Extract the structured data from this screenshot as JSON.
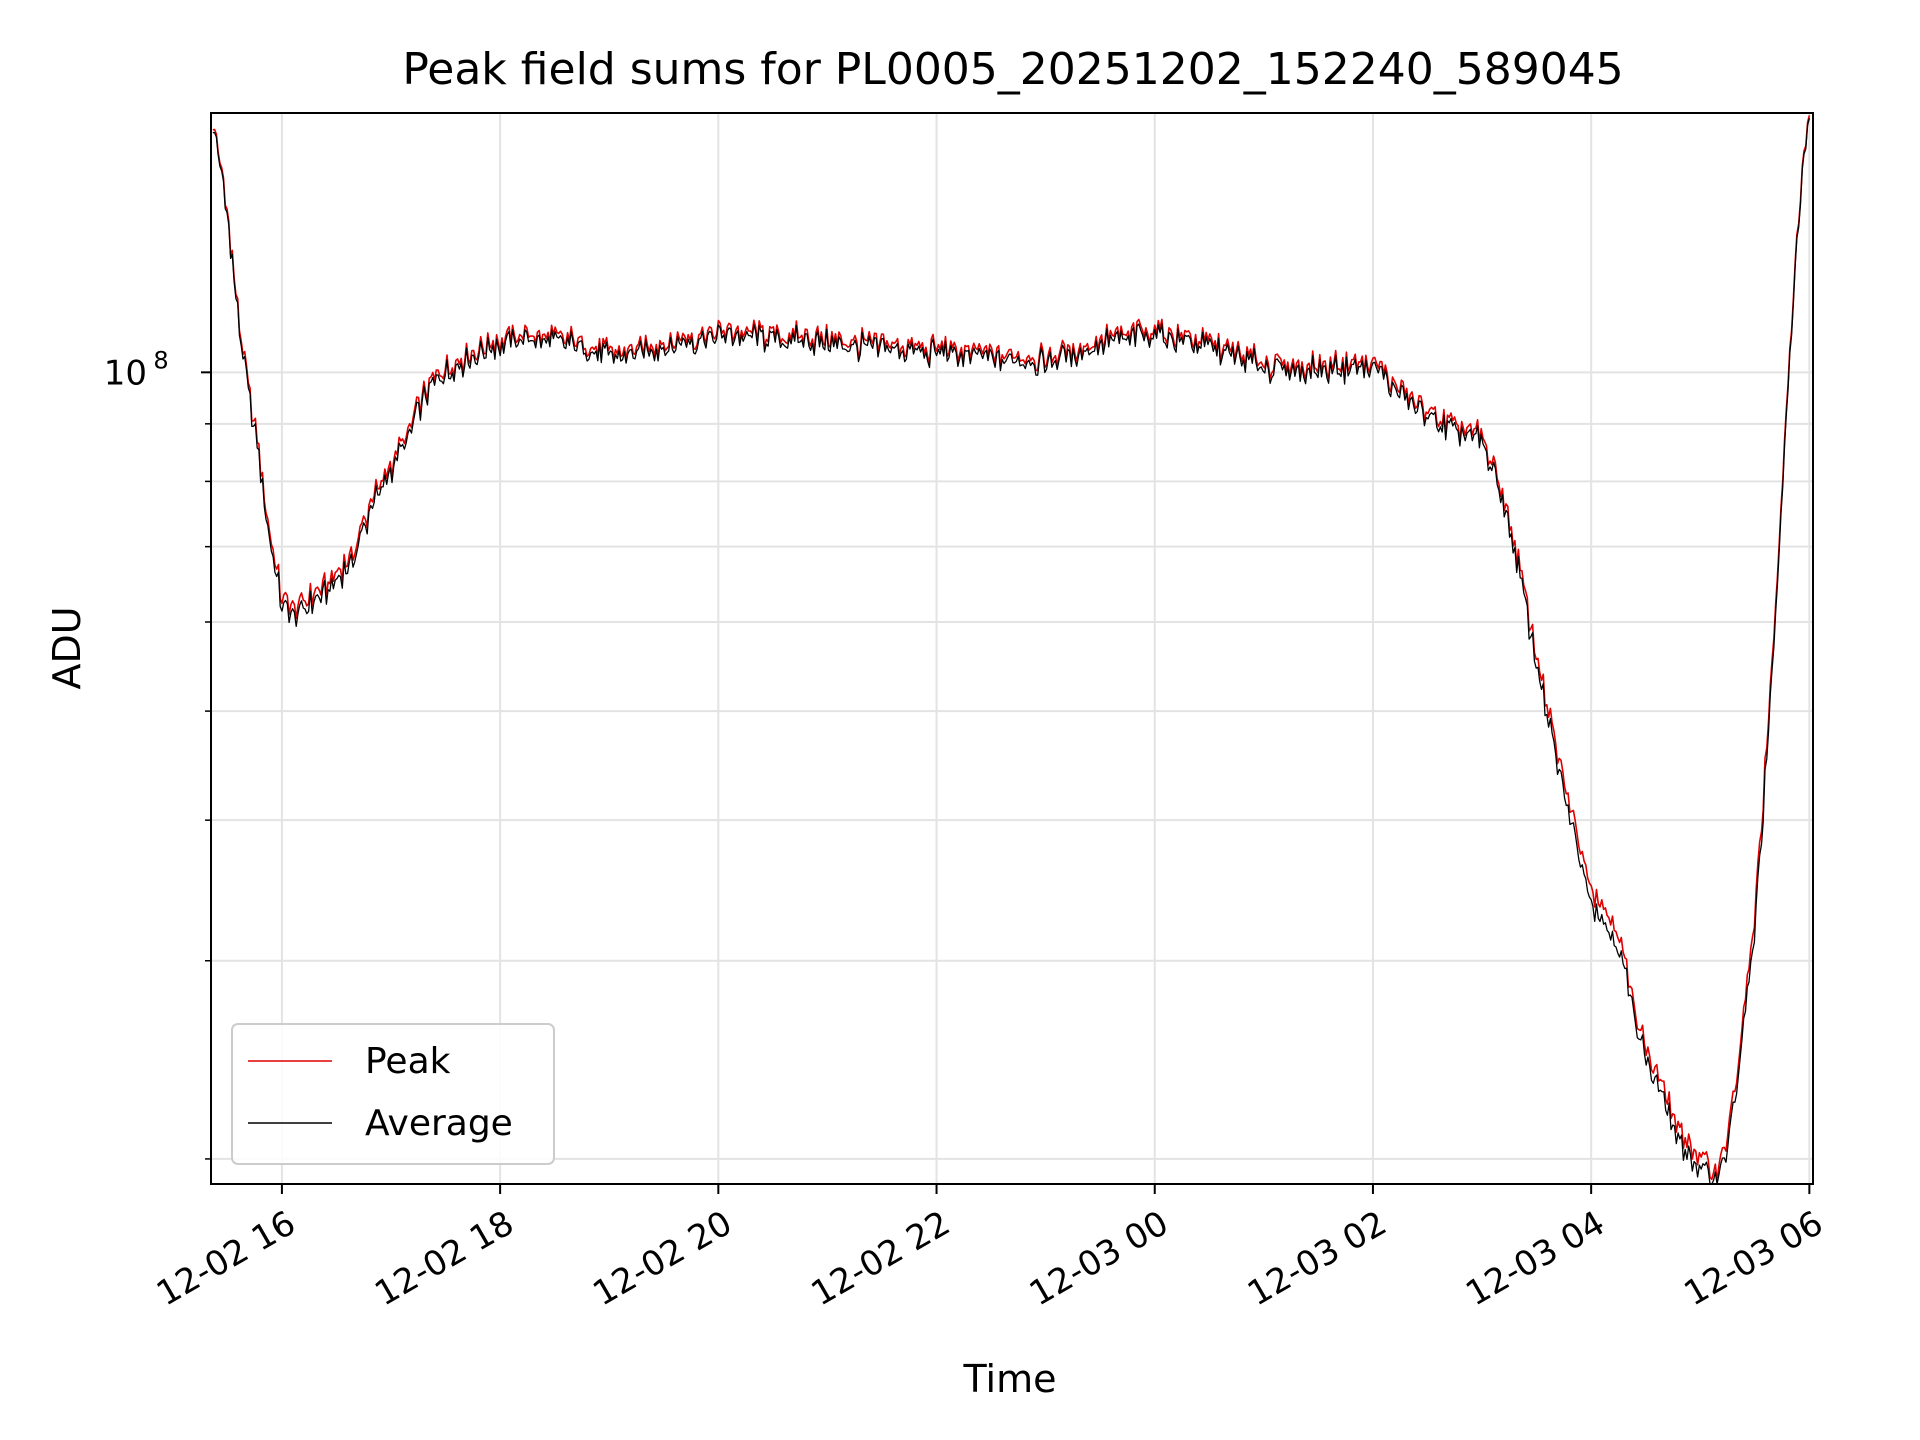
{
  "chart_data": {
    "type": "line",
    "title": "Peak field sums for PL0005_20251202_152240_589045",
    "xlabel": "Time",
    "ylabel": "ADU",
    "y_scale": "log",
    "grid": true,
    "legend_position": "lower-left",
    "xlim": [
      "2025-12-02 15:21",
      "2025-12-03 06:02"
    ],
    "ylim": [
      19000000,
      170000000
    ],
    "x_ticks": [
      "12-02 16",
      "12-02 18",
      "12-02 20",
      "12-02 22",
      "12-03 00",
      "12-03 02",
      "12-03 04",
      "12-03 06"
    ],
    "y_tick_labels": [
      {
        "base": "10",
        "exponent": "8"
      }
    ],
    "series": [
      {
        "name": "Peak",
        "color": "#e00000",
        "x": [
          "2025-12-02 15:22",
          "2025-12-02 15:27",
          "2025-12-02 15:32",
          "2025-12-02 15:37",
          "2025-12-02 15:42",
          "2025-12-02 15:46",
          "2025-12-02 15:50",
          "2025-12-02 15:54",
          "2025-12-02 15:57",
          "2025-12-02 16:00",
          "2025-12-02 16:10",
          "2025-12-02 16:20",
          "2025-12-02 16:30",
          "2025-12-02 16:40",
          "2025-12-02 16:50",
          "2025-12-02 17:00",
          "2025-12-02 17:10",
          "2025-12-02 17:20",
          "2025-12-02 17:30",
          "2025-12-02 17:45",
          "2025-12-02 18:00",
          "2025-12-02 18:20",
          "2025-12-02 18:40",
          "2025-12-02 19:00",
          "2025-12-02 19:30",
          "2025-12-02 20:00",
          "2025-12-02 20:30",
          "2025-12-02 21:00",
          "2025-12-02 21:30",
          "2025-12-02 22:00",
          "2025-12-02 22:30",
          "2025-12-02 23:00",
          "2025-12-02 23:30",
          "2025-12-03 00:00",
          "2025-12-03 00:30",
          "2025-12-03 01:00",
          "2025-12-03 01:30",
          "2025-12-03 02:00",
          "2025-12-03 02:20",
          "2025-12-03 02:40",
          "2025-12-03 03:00",
          "2025-12-03 03:10",
          "2025-12-03 03:20",
          "2025-12-03 03:30",
          "2025-12-03 03:40",
          "2025-12-03 03:50",
          "2025-12-03 04:00",
          "2025-12-03 04:10",
          "2025-12-03 04:15",
          "2025-12-03 04:20",
          "2025-12-03 04:25",
          "2025-12-03 04:30",
          "2025-12-03 04:40",
          "2025-12-03 04:50",
          "2025-12-03 05:00",
          "2025-12-03 05:08",
          "2025-12-03 05:15",
          "2025-12-03 05:22",
          "2025-12-03 05:30",
          "2025-12-03 05:38",
          "2025-12-03 05:45",
          "2025-12-03 05:52",
          "2025-12-03 05:58",
          "2025-12-03 06:00"
        ],
        "y": [
          168000000,
          150000000,
          130000000,
          108000000,
          96000000,
          88000000,
          79000000,
          71000000,
          67000000,
          63000000,
          62000000,
          64000000,
          66000000,
          70000000,
          77000000,
          83000000,
          89000000,
          97000000,
          101000000,
          104000000,
          107000000,
          108000000,
          107000000,
          104000000,
          106000000,
          109000000,
          108000000,
          107000000,
          106000000,
          105000000,
          104000000,
          103000000,
          107000000,
          109000000,
          106000000,
          102000000,
          101000000,
          102000000,
          95000000,
          90000000,
          88000000,
          80000000,
          68000000,
          56000000,
          47000000,
          40000000,
          35000000,
          33000000,
          32000000,
          29000000,
          27000000,
          25000000,
          23000000,
          21000000,
          20000000,
          19500000,
          21000000,
          25000000,
          33000000,
          50000000,
          78000000,
          125000000,
          163000000,
          168000000
        ]
      },
      {
        "name": "Average",
        "color": "#000000",
        "x": [
          "2025-12-02 15:22",
          "2025-12-02 15:27",
          "2025-12-02 15:32",
          "2025-12-02 15:37",
          "2025-12-02 15:42",
          "2025-12-02 15:46",
          "2025-12-02 15:50",
          "2025-12-02 15:54",
          "2025-12-02 15:57",
          "2025-12-02 16:00",
          "2025-12-02 16:10",
          "2025-12-02 16:20",
          "2025-12-02 16:30",
          "2025-12-02 16:40",
          "2025-12-02 16:50",
          "2025-12-02 17:00",
          "2025-12-02 17:10",
          "2025-12-02 17:20",
          "2025-12-02 17:30",
          "2025-12-02 17:45",
          "2025-12-02 18:00",
          "2025-12-02 18:20",
          "2025-12-02 18:40",
          "2025-12-02 19:00",
          "2025-12-02 19:30",
          "2025-12-02 20:00",
          "2025-12-02 20:30",
          "2025-12-02 21:00",
          "2025-12-02 21:30",
          "2025-12-02 22:00",
          "2025-12-02 22:30",
          "2025-12-02 23:00",
          "2025-12-02 23:30",
          "2025-12-03 00:00",
          "2025-12-03 00:30",
          "2025-12-03 01:00",
          "2025-12-03 01:30",
          "2025-12-03 02:00",
          "2025-12-03 02:20",
          "2025-12-03 02:40",
          "2025-12-03 03:00",
          "2025-12-03 03:10",
          "2025-12-03 03:20",
          "2025-12-03 03:30",
          "2025-12-03 03:40",
          "2025-12-03 03:50",
          "2025-12-03 04:00",
          "2025-12-03 04:10",
          "2025-12-03 04:15",
          "2025-12-03 04:20",
          "2025-12-03 04:25",
          "2025-12-03 04:30",
          "2025-12-03 04:40",
          "2025-12-03 04:50",
          "2025-12-03 05:00",
          "2025-12-03 05:08",
          "2025-12-03 05:15",
          "2025-12-03 05:22",
          "2025-12-03 05:30",
          "2025-12-03 05:38",
          "2025-12-03 05:45",
          "2025-12-03 05:52",
          "2025-12-03 05:58",
          "2025-12-03 06:00"
        ],
        "y": [
          167000000,
          149000000,
          129000000,
          107000000,
          95000000,
          87000000,
          78000000,
          70000000,
          66000000,
          62000000,
          61000000,
          63000000,
          65000000,
          69000000,
          76000000,
          82000000,
          88000000,
          96000000,
          100000000,
          103000000,
          106000000,
          107000000,
          106000000,
          103000000,
          105000000,
          108000000,
          107000000,
          106000000,
          105000000,
          104000000,
          103000000,
          102000000,
          106000000,
          108000000,
          105000000,
          101000000,
          100000000,
          101000000,
          94000000,
          89000000,
          87000000,
          79000000,
          67000000,
          55000000,
          46000000,
          39000000,
          34000000,
          32000000,
          31000000,
          28500000,
          26500000,
          24500000,
          22500000,
          20500000,
          19500000,
          19200000,
          20500000,
          24500000,
          32000000,
          49000000,
          77000000,
          124000000,
          162000000,
          167000000
        ]
      }
    ]
  }
}
